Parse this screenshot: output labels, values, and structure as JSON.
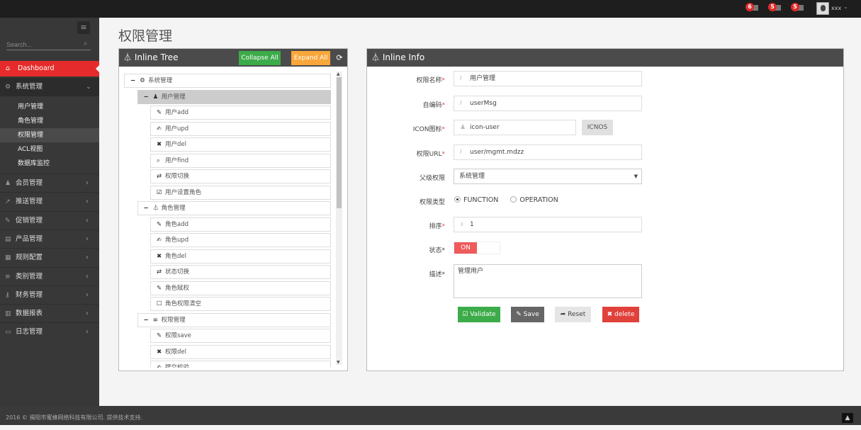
{
  "topbar": {
    "notifications": [
      {
        "count": "6",
        "icon": "bell-icon"
      },
      {
        "count": "5",
        "icon": "envelope-icon"
      },
      {
        "count": "5",
        "icon": "tasks-icon"
      }
    ],
    "user": "xxx"
  },
  "sidebar": {
    "search_placeholder": "Search...",
    "dashboard": "Dashboard",
    "system": {
      "label": "系统管理",
      "items": [
        "用户管理",
        "角色管理",
        "权限管理",
        "ACL视图",
        "数据库监控"
      ],
      "active": "权限管理"
    },
    "menus": [
      {
        "label": "会员管理",
        "icon": "user-icon"
      },
      {
        "label": "推送管理",
        "icon": "share-icon"
      },
      {
        "label": "促销管理",
        "icon": "pencil-icon"
      },
      {
        "label": "产品管理",
        "icon": "book-icon"
      },
      {
        "label": "规则配置",
        "icon": "table-icon"
      },
      {
        "label": "类别管理",
        "icon": "list-icon"
      },
      {
        "label": "财务管理",
        "icon": "key-icon"
      },
      {
        "label": "数据报表",
        "icon": "chart-icon"
      },
      {
        "label": "日志管理",
        "icon": "credit-card-icon"
      }
    ]
  },
  "page_title": "权限管理",
  "tree_panel": {
    "title": "Inline Tree",
    "collapse_all": "Collapse All",
    "expand_all": "Expand All",
    "nodes": [
      {
        "level": 0,
        "label": "系统管理",
        "icon": "cogs-icon",
        "toggle": "−"
      },
      {
        "level": 1,
        "label": "用户管理",
        "icon": "user-icon",
        "toggle": "−",
        "selected": true
      },
      {
        "level": 2,
        "label": "用户add",
        "icon": "pencil-icon"
      },
      {
        "level": 2,
        "label": "用户upd",
        "icon": "edit-icon"
      },
      {
        "level": 2,
        "label": "用户del",
        "icon": "times-icon"
      },
      {
        "level": 2,
        "label": "用户find",
        "icon": "search-icon"
      },
      {
        "level": 2,
        "label": "权限切换",
        "icon": "retweet-icon"
      },
      {
        "level": 2,
        "label": "用户设置角色",
        "icon": "check-square-icon"
      },
      {
        "level": 1,
        "label": "角色管理",
        "icon": "sitemap-icon",
        "toggle": "−"
      },
      {
        "level": 2,
        "label": "角色add",
        "icon": "pencil-icon"
      },
      {
        "level": 2,
        "label": "角色upd",
        "icon": "edit-icon"
      },
      {
        "level": 2,
        "label": "角色del",
        "icon": "times-icon"
      },
      {
        "level": 2,
        "label": "状态切换",
        "icon": "retweet-icon"
      },
      {
        "level": 2,
        "label": "角色赋权",
        "icon": "pencil-icon"
      },
      {
        "level": 2,
        "label": "角色权限清空",
        "icon": "square-icon"
      },
      {
        "level": 1,
        "label": "权限管理",
        "icon": "list-icon",
        "toggle": "−"
      },
      {
        "level": 2,
        "label": "权限save",
        "icon": "pencil-icon"
      },
      {
        "level": 2,
        "label": "权限del",
        "icon": "times-icon"
      },
      {
        "level": 2,
        "label": "提交校验",
        "icon": "edit-icon"
      }
    ]
  },
  "info_panel": {
    "title": "Inline Info",
    "name_label": "权限名称",
    "name_value": "用户管理",
    "code_label": "自编码",
    "code_value": "userMsg",
    "icon_label": "ICON图标",
    "icon_value": "icon-user",
    "icnos_button": "ICNOS",
    "url_label": "权限URL",
    "url_value": "user/mgmt.mdzz",
    "parent_label": "父级权限",
    "parent_value": "系统管理",
    "type_label": "权限类型",
    "type_options": [
      "FUNCTION",
      "OPERATION"
    ],
    "type_selected": "FUNCTION",
    "sort_label": "排序",
    "sort_value": "1",
    "status_label": "状态",
    "status_value": "ON",
    "desc_label": "描述",
    "desc_value": "管理用户",
    "buttons": {
      "validate": "Validate",
      "save": "Save",
      "reset": "Reset",
      "delete": "delete"
    },
    "required_mark": "*"
  },
  "colors": {
    "accent": "#e52b2b",
    "green": "#3cab4a",
    "orange": "#f9a73b",
    "save": "#666666",
    "delete": "#e0413a"
  },
  "footer": {
    "text": "2016 © 揭阳市蜜蜂网络科技有限公司. 提供技术支持."
  }
}
